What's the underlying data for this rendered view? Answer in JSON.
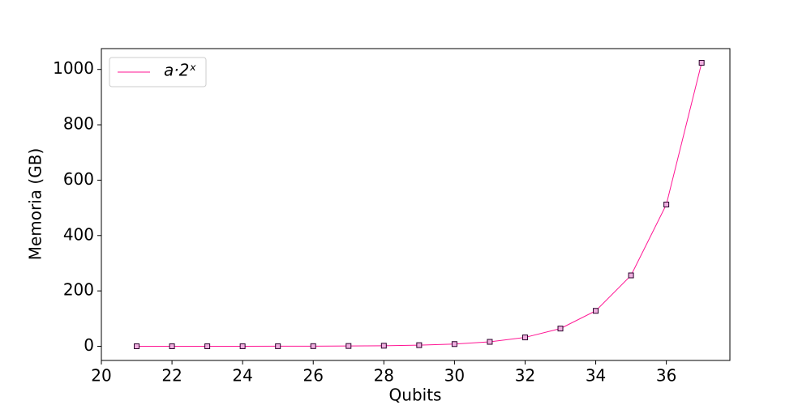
{
  "chart_data": {
    "type": "line",
    "xlabel": "Qubits",
    "ylabel": "Memoria (GB)",
    "x": [
      21,
      22,
      23,
      24,
      25,
      26,
      27,
      28,
      29,
      30,
      31,
      32,
      33,
      34,
      35,
      36,
      37
    ],
    "series": [
      {
        "name": "a·2ˣ",
        "color": "#ff1493",
        "marker_edge": "#2a002a",
        "marker_fill": "#f0b0e0",
        "values": [
          0.015625,
          0.03125,
          0.0625,
          0.125,
          0.25,
          0.5,
          1,
          2,
          4,
          8,
          16,
          32,
          64,
          128,
          256,
          512,
          1024
        ]
      }
    ],
    "xlim": [
      20,
      37.8
    ],
    "ylim": [
      -51.2,
      1075.2
    ],
    "xticks": [
      20,
      22,
      24,
      26,
      28,
      30,
      32,
      34,
      36
    ],
    "yticks": [
      0,
      200,
      400,
      600,
      800,
      1000
    ],
    "legend": "upper left",
    "grid": false
  }
}
